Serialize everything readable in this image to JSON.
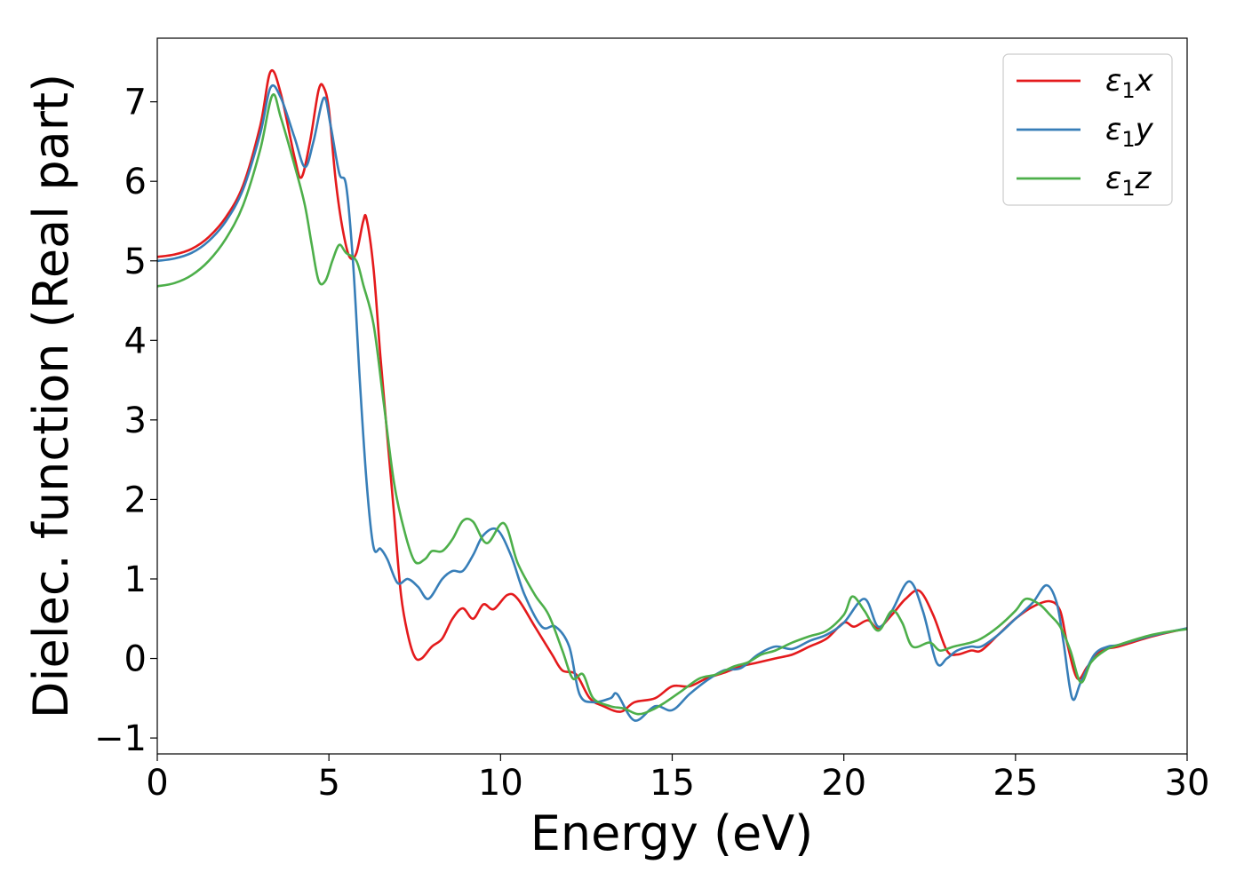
{
  "chart_data": {
    "type": "line",
    "title": "",
    "xlabel": "Energy (eV)",
    "ylabel": "Dielec. function (Real part)",
    "xlim": [
      0,
      30
    ],
    "ylim": [
      -1.2,
      7.8
    ],
    "xticks": [
      0,
      5,
      10,
      15,
      20,
      25,
      30
    ],
    "yticks": [
      -1,
      0,
      1,
      2,
      3,
      4,
      5,
      6,
      7
    ],
    "xtick_labels": [
      "0",
      "5",
      "10",
      "15",
      "20",
      "25",
      "30"
    ],
    "ytick_labels": [
      "−1",
      "0",
      "1",
      "2",
      "3",
      "4",
      "5",
      "6",
      "7"
    ],
    "grid": false,
    "legend_position": "top-right",
    "series": [
      {
        "name": "ε₁x",
        "legend_base": "ε",
        "legend_sub": "1",
        "legend_suffix": "x",
        "color": "#e41a1c",
        "points": [
          [
            0,
            5.05
          ],
          [
            0.5,
            5.08
          ],
          [
            1,
            5.15
          ],
          [
            1.5,
            5.3
          ],
          [
            2,
            5.55
          ],
          [
            2.5,
            5.95
          ],
          [
            3,
            6.7
          ],
          [
            3.3,
            7.38
          ],
          [
            3.6,
            7.1
          ],
          [
            4,
            6.3
          ],
          [
            4.2,
            6.05
          ],
          [
            4.45,
            6.5
          ],
          [
            4.7,
            7.15
          ],
          [
            4.85,
            7.18
          ],
          [
            5,
            6.9
          ],
          [
            5.2,
            6.0
          ],
          [
            5.4,
            5.4
          ],
          [
            5.6,
            5.05
          ],
          [
            5.8,
            5.1
          ],
          [
            6,
            5.5
          ],
          [
            6.1,
            5.52
          ],
          [
            6.3,
            4.9
          ],
          [
            6.5,
            3.8
          ],
          [
            6.7,
            2.8
          ],
          [
            6.9,
            1.8
          ],
          [
            7.1,
            0.8
          ],
          [
            7.3,
            0.3
          ],
          [
            7.5,
            0.02
          ],
          [
            7.7,
            0.0
          ],
          [
            8,
            0.15
          ],
          [
            8.3,
            0.25
          ],
          [
            8.6,
            0.5
          ],
          [
            8.9,
            0.63
          ],
          [
            9.2,
            0.5
          ],
          [
            9.5,
            0.68
          ],
          [
            9.8,
            0.62
          ],
          [
            10.2,
            0.8
          ],
          [
            10.5,
            0.75
          ],
          [
            11,
            0.4
          ],
          [
            11.5,
            0.05
          ],
          [
            11.8,
            -0.15
          ],
          [
            12.2,
            -0.2
          ],
          [
            12.6,
            -0.5
          ],
          [
            13,
            -0.6
          ],
          [
            13.5,
            -0.67
          ],
          [
            13.9,
            -0.55
          ],
          [
            14.5,
            -0.5
          ],
          [
            15,
            -0.35
          ],
          [
            15.5,
            -0.35
          ],
          [
            16,
            -0.25
          ],
          [
            16.5,
            -0.18
          ],
          [
            17,
            -0.1
          ],
          [
            17.5,
            -0.05
          ],
          [
            18,
            0.0
          ],
          [
            18.5,
            0.05
          ],
          [
            19,
            0.15
          ],
          [
            19.5,
            0.25
          ],
          [
            20,
            0.45
          ],
          [
            20.3,
            0.4
          ],
          [
            20.7,
            0.48
          ],
          [
            21,
            0.38
          ],
          [
            21.4,
            0.55
          ],
          [
            21.8,
            0.75
          ],
          [
            22.2,
            0.85
          ],
          [
            22.6,
            0.55
          ],
          [
            23,
            0.1
          ],
          [
            23.3,
            0.05
          ],
          [
            23.7,
            0.1
          ],
          [
            24,
            0.1
          ],
          [
            24.5,
            0.3
          ],
          [
            25,
            0.5
          ],
          [
            25.5,
            0.65
          ],
          [
            26,
            0.72
          ],
          [
            26.3,
            0.6
          ],
          [
            26.5,
            0.2
          ],
          [
            26.8,
            -0.25
          ],
          [
            27.1,
            -0.1
          ],
          [
            27.5,
            0.1
          ],
          [
            28,
            0.15
          ],
          [
            29,
            0.28
          ],
          [
            30,
            0.38
          ]
        ]
      },
      {
        "name": "ε₁y",
        "legend_base": "ε",
        "legend_sub": "1",
        "legend_suffix": "y",
        "color": "#377eb8",
        "points": [
          [
            0,
            5.0
          ],
          [
            0.5,
            5.03
          ],
          [
            1,
            5.1
          ],
          [
            1.5,
            5.25
          ],
          [
            2,
            5.5
          ],
          [
            2.5,
            5.9
          ],
          [
            3,
            6.6
          ],
          [
            3.3,
            7.18
          ],
          [
            3.6,
            7.05
          ],
          [
            4,
            6.55
          ],
          [
            4.3,
            6.18
          ],
          [
            4.55,
            6.5
          ],
          [
            4.85,
            7.05
          ],
          [
            5.05,
            6.7
          ],
          [
            5.3,
            6.1
          ],
          [
            5.5,
            5.95
          ],
          [
            5.7,
            5.0
          ],
          [
            5.9,
            3.5
          ],
          [
            6.1,
            2.2
          ],
          [
            6.3,
            1.4
          ],
          [
            6.5,
            1.38
          ],
          [
            6.7,
            1.25
          ],
          [
            7,
            0.95
          ],
          [
            7.3,
            1.0
          ],
          [
            7.6,
            0.9
          ],
          [
            7.9,
            0.75
          ],
          [
            8.3,
            1.0
          ],
          [
            8.6,
            1.1
          ],
          [
            8.9,
            1.1
          ],
          [
            9.2,
            1.3
          ],
          [
            9.5,
            1.55
          ],
          [
            9.9,
            1.62
          ],
          [
            10.3,
            1.3
          ],
          [
            10.7,
            0.8
          ],
          [
            11.2,
            0.4
          ],
          [
            11.6,
            0.4
          ],
          [
            12,
            0.15
          ],
          [
            12.3,
            -0.45
          ],
          [
            12.7,
            -0.55
          ],
          [
            13.2,
            -0.5
          ],
          [
            13.4,
            -0.45
          ],
          [
            13.9,
            -0.78
          ],
          [
            14.5,
            -0.6
          ],
          [
            15,
            -0.65
          ],
          [
            15.5,
            -0.45
          ],
          [
            16,
            -0.28
          ],
          [
            16.5,
            -0.15
          ],
          [
            17,
            -0.12
          ],
          [
            17.5,
            0.05
          ],
          [
            18,
            0.15
          ],
          [
            18.5,
            0.12
          ],
          [
            19,
            0.22
          ],
          [
            19.5,
            0.3
          ],
          [
            20,
            0.45
          ],
          [
            20.6,
            0.75
          ],
          [
            21,
            0.4
          ],
          [
            21.4,
            0.6
          ],
          [
            21.9,
            0.97
          ],
          [
            22.3,
            0.6
          ],
          [
            22.7,
            -0.05
          ],
          [
            23,
            0.0
          ],
          [
            23.3,
            0.1
          ],
          [
            23.7,
            0.15
          ],
          [
            24,
            0.15
          ],
          [
            24.5,
            0.3
          ],
          [
            25,
            0.5
          ],
          [
            25.5,
            0.7
          ],
          [
            25.9,
            0.92
          ],
          [
            26.2,
            0.7
          ],
          [
            26.4,
            0.2
          ],
          [
            26.65,
            -0.5
          ],
          [
            26.9,
            -0.3
          ],
          [
            27.3,
            0.05
          ],
          [
            27.7,
            0.15
          ],
          [
            28,
            0.17
          ],
          [
            29,
            0.29
          ],
          [
            30,
            0.38
          ]
        ]
      },
      {
        "name": "ε₁z",
        "legend_base": "ε",
        "legend_sub": "1",
        "legend_suffix": "z",
        "color": "#4daf4a",
        "points": [
          [
            0,
            4.68
          ],
          [
            0.5,
            4.72
          ],
          [
            1,
            4.82
          ],
          [
            1.5,
            5.0
          ],
          [
            2,
            5.28
          ],
          [
            2.5,
            5.7
          ],
          [
            3,
            6.4
          ],
          [
            3.35,
            7.08
          ],
          [
            3.6,
            6.8
          ],
          [
            4,
            6.2
          ],
          [
            4.3,
            5.7
          ],
          [
            4.5,
            5.2
          ],
          [
            4.7,
            4.75
          ],
          [
            4.9,
            4.75
          ],
          [
            5.1,
            5.0
          ],
          [
            5.3,
            5.2
          ],
          [
            5.5,
            5.1
          ],
          [
            5.8,
            5.0
          ],
          [
            6,
            4.7
          ],
          [
            6.3,
            4.2
          ],
          [
            6.6,
            3.2
          ],
          [
            6.9,
            2.2
          ],
          [
            7.2,
            1.6
          ],
          [
            7.5,
            1.22
          ],
          [
            7.8,
            1.25
          ],
          [
            8,
            1.35
          ],
          [
            8.3,
            1.35
          ],
          [
            8.6,
            1.5
          ],
          [
            8.9,
            1.73
          ],
          [
            9.2,
            1.72
          ],
          [
            9.6,
            1.45
          ],
          [
            10.1,
            1.7
          ],
          [
            10.5,
            1.2
          ],
          [
            11,
            0.8
          ],
          [
            11.4,
            0.55
          ],
          [
            11.8,
            0.1
          ],
          [
            12.1,
            -0.25
          ],
          [
            12.4,
            -0.2
          ],
          [
            12.7,
            -0.5
          ],
          [
            13.2,
            -0.6
          ],
          [
            13.6,
            -0.63
          ],
          [
            14,
            -0.7
          ],
          [
            14.4,
            -0.65
          ],
          [
            14.8,
            -0.55
          ],
          [
            15.3,
            -0.4
          ],
          [
            15.8,
            -0.25
          ],
          [
            16.3,
            -0.2
          ],
          [
            16.8,
            -0.1
          ],
          [
            17.2,
            -0.05
          ],
          [
            17.6,
            0.05
          ],
          [
            18,
            0.1
          ],
          [
            18.5,
            0.2
          ],
          [
            19,
            0.28
          ],
          [
            19.5,
            0.35
          ],
          [
            20,
            0.55
          ],
          [
            20.25,
            0.78
          ],
          [
            20.6,
            0.6
          ],
          [
            21,
            0.35
          ],
          [
            21.4,
            0.6
          ],
          [
            21.7,
            0.45
          ],
          [
            22,
            0.15
          ],
          [
            22.5,
            0.2
          ],
          [
            22.8,
            0.1
          ],
          [
            23.2,
            0.15
          ],
          [
            23.7,
            0.2
          ],
          [
            24,
            0.25
          ],
          [
            24.5,
            0.4
          ],
          [
            25,
            0.6
          ],
          [
            25.3,
            0.75
          ],
          [
            25.7,
            0.68
          ],
          [
            26,
            0.55
          ],
          [
            26.3,
            0.4
          ],
          [
            26.6,
            0.1
          ],
          [
            26.9,
            -0.3
          ],
          [
            27.2,
            -0.05
          ],
          [
            27.6,
            0.1
          ],
          [
            28,
            0.17
          ],
          [
            29,
            0.3
          ],
          [
            30,
            0.37
          ]
        ]
      }
    ]
  }
}
